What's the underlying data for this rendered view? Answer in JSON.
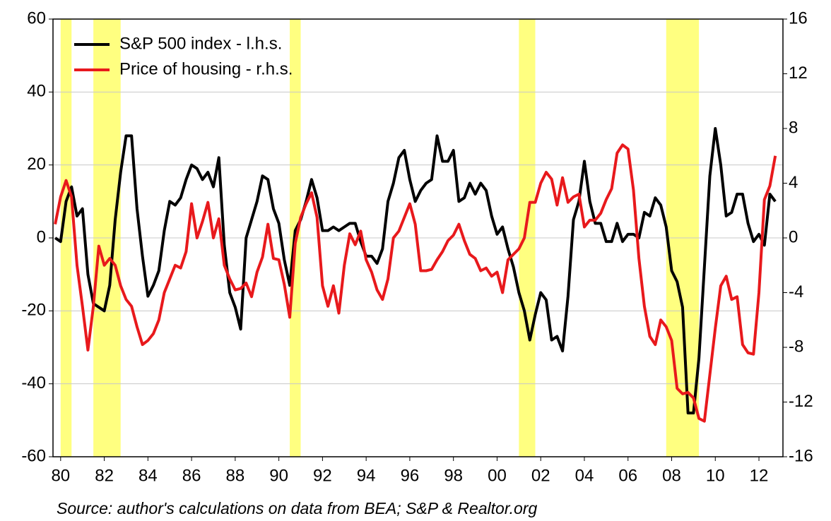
{
  "chart_data": {
    "type": "line",
    "source": "Source: author's calculations on data from BEA; S&P & Realtor.org",
    "legend": "top-left",
    "grid": true,
    "xlim": [
      1979.65,
      2013.1
    ],
    "xticks": [
      {
        "value": 1980,
        "label": "80"
      },
      {
        "value": 1982,
        "label": "82"
      },
      {
        "value": 1984,
        "label": "84"
      },
      {
        "value": 1986,
        "label": "86"
      },
      {
        "value": 1988,
        "label": "88"
      },
      {
        "value": 1990,
        "label": "90"
      },
      {
        "value": 1992,
        "label": "92"
      },
      {
        "value": 1994,
        "label": "94"
      },
      {
        "value": 1996,
        "label": "96"
      },
      {
        "value": 1998,
        "label": "98"
      },
      {
        "value": 2000,
        "label": "00"
      },
      {
        "value": 2002,
        "label": "02"
      },
      {
        "value": 2004,
        "label": "04"
      },
      {
        "value": 2006,
        "label": "06"
      },
      {
        "value": 2008,
        "label": "08"
      },
      {
        "value": 2010,
        "label": "10"
      },
      {
        "value": 2012,
        "label": "12"
      }
    ],
    "ylim": [
      -60,
      60
    ],
    "yticks": [
      -60,
      -40,
      -20,
      0,
      20,
      40,
      60
    ],
    "y2lim": [
      -16,
      16
    ],
    "y2ticks": [
      -16,
      -12,
      -8,
      -4,
      0,
      4,
      8,
      12,
      16
    ],
    "recession_color": "#ffff80",
    "recessions": [
      [
        1980.0,
        1980.5
      ],
      [
        1981.5,
        1982.75
      ],
      [
        1990.5,
        1991.0
      ],
      [
        2001.0,
        2001.75
      ],
      [
        2007.75,
        2009.25
      ]
    ],
    "x": [
      1979.75,
      1980,
      1980.25,
      1980.5,
      1980.75,
      1981,
      1981.25,
      1981.5,
      1981.75,
      1982,
      1982.25,
      1982.5,
      1982.75,
      1983,
      1983.25,
      1983.5,
      1983.75,
      1984,
      1984.25,
      1984.5,
      1984.75,
      1985,
      1985.25,
      1985.5,
      1985.75,
      1986,
      1986.25,
      1986.5,
      1986.75,
      1987,
      1987.25,
      1987.5,
      1987.75,
      1988,
      1988.25,
      1988.5,
      1988.75,
      1989,
      1989.25,
      1989.5,
      1989.75,
      1990,
      1990.25,
      1990.5,
      1990.75,
      1991,
      1991.25,
      1991.5,
      1991.75,
      1992,
      1992.25,
      1992.5,
      1992.75,
      1993,
      1993.25,
      1993.5,
      1993.75,
      1994,
      1994.25,
      1994.5,
      1994.75,
      1995,
      1995.25,
      1995.5,
      1995.75,
      1996,
      1996.25,
      1996.5,
      1996.75,
      1997,
      1997.25,
      1997.5,
      1997.75,
      1998,
      1998.25,
      1998.5,
      1998.75,
      1999,
      1999.25,
      1999.5,
      1999.75,
      2000,
      2000.25,
      2000.5,
      2000.75,
      2001,
      2001.25,
      2001.5,
      2001.75,
      2002,
      2002.25,
      2002.5,
      2002.75,
      2003,
      2003.25,
      2003.5,
      2003.75,
      2004,
      2004.25,
      2004.5,
      2004.75,
      2005,
      2005.25,
      2005.5,
      2005.75,
      2006,
      2006.25,
      2006.5,
      2006.75,
      2007,
      2007.25,
      2007.5,
      2007.75,
      2008,
      2008.25,
      2008.5,
      2008.75,
      2009,
      2009.25,
      2009.5,
      2009.75,
      2010,
      2010.25,
      2010.5,
      2010.75,
      2011,
      2011.25,
      2011.5,
      2011.75,
      2012,
      2012.25,
      2012.5,
      2012.75
    ],
    "series": [
      {
        "name": "S&P 500 index - l.h.s.",
        "color": "#000000",
        "values": [
          0,
          -1,
          10,
          14,
          6,
          8,
          -10,
          -18,
          -19,
          -20,
          -13,
          5,
          18,
          28,
          28,
          8,
          -5,
          -16,
          -13,
          -9,
          2,
          10,
          9,
          11,
          16,
          20,
          19,
          16,
          18,
          14,
          22,
          -2,
          -15,
          -19,
          -25,
          0,
          5,
          10,
          17,
          16,
          8,
          4,
          -6,
          -13,
          2,
          5,
          10,
          16,
          11,
          2,
          2,
          3,
          2,
          3,
          4,
          4,
          -1,
          -5,
          -5,
          -7,
          -3,
          10,
          15,
          22,
          24,
          16,
          10,
          13,
          15,
          16,
          28,
          21,
          21,
          24,
          10,
          11,
          15,
          12,
          15,
          13,
          6,
          1,
          3,
          -3,
          -8,
          -15,
          -20,
          -28,
          -21,
          -15,
          -17,
          -28,
          -27,
          -31,
          -16,
          5,
          10,
          21,
          10,
          4,
          4,
          -1,
          -1,
          4,
          -1,
          1,
          1,
          0,
          7,
          6,
          11,
          9,
          3,
          -9,
          -12,
          -19,
          -48,
          -48,
          -33,
          -8,
          17,
          30,
          20,
          6,
          7,
          12,
          12,
          4,
          -1,
          1,
          -2,
          12,
          10
        ]
      },
      {
        "name": "Price of housing - r.h.s.",
        "color": "#e8191c",
        "axis": "y2",
        "values": [
          1,
          3,
          4.2,
          3,
          -2,
          -5,
          -8.2,
          -5,
          -0.6,
          -2,
          -1.5,
          -2,
          -3.5,
          -4.5,
          -5,
          -6.5,
          -7.8,
          -7.5,
          -7,
          -6,
          -4,
          -3,
          -2,
          -2.2,
          -1,
          2.5,
          0,
          1.2,
          2.6,
          0,
          1.4,
          -2,
          -3,
          -3.8,
          -3.7,
          -3.3,
          -4.3,
          -2.5,
          -1.4,
          1,
          -1.5,
          -1.6,
          -3.4,
          -5.8,
          -0.4,
          1.5,
          2.5,
          3.3,
          1.5,
          -3.5,
          -5,
          -3.5,
          -5.5,
          -2,
          0.3,
          -0.5,
          0.5,
          -1.6,
          -2.5,
          -3.8,
          -4.5,
          -3,
          0,
          0.5,
          1.5,
          2.5,
          1,
          -2.4,
          -2.4,
          -2.3,
          -1.6,
          -1,
          -0.2,
          0.2,
          1,
          -0.2,
          -1.2,
          -1.5,
          -2.4,
          -2.2,
          -2.8,
          -2.5,
          -4,
          -1.6,
          -1.2,
          -0.8,
          0,
          2.6,
          2.6,
          4,
          4.8,
          4.3,
          2.4,
          4.4,
          2.6,
          3,
          3.2,
          0.8,
          1.3,
          1.3,
          1.8,
          2.8,
          3.6,
          6.2,
          6.8,
          6.5,
          3.5,
          -1.5,
          -5,
          -7.2,
          -7.8,
          -6,
          -6.5,
          -7.5,
          -11,
          -11.4,
          -11.3,
          -11.7,
          -13.2,
          -13.4,
          -10,
          -6.6,
          -3.5,
          -2.8,
          -4.5,
          -4.3,
          -7.8,
          -8.4,
          -8.5,
          -4,
          2.8,
          3.8,
          6
        ]
      }
    ]
  }
}
